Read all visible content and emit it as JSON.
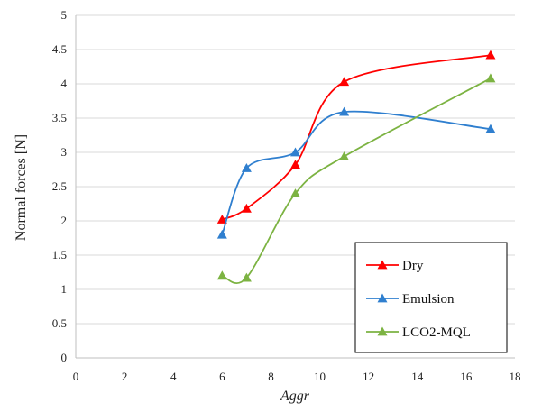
{
  "chart_data": {
    "type": "line",
    "title": "",
    "xlabel": "Aggr",
    "ylabel": "Normal forces [N]",
    "xlim": [
      0,
      18
    ],
    "ylim": [
      0,
      5
    ],
    "xticks": [
      "0",
      "2",
      "4",
      "6",
      "8",
      "10",
      "12",
      "14",
      "16",
      "18"
    ],
    "yticks": [
      "0",
      "0.5",
      "1",
      "1.5",
      "2",
      "2.5",
      "3",
      "3.5",
      "4",
      "4.5",
      "5"
    ],
    "grid": "horizontal",
    "legend_position": "bottom-right",
    "smooth_lines": true,
    "marker": "triangle",
    "series": [
      {
        "name": "Dry",
        "color": "#ff0000",
        "x": [
          6,
          7,
          9,
          11,
          17
        ],
        "y": [
          2.02,
          2.18,
          2.82,
          4.03,
          4.42
        ]
      },
      {
        "name": "Emulsion",
        "color": "#2f7fcf",
        "x": [
          6,
          7,
          9,
          11,
          17
        ],
        "y": [
          1.8,
          2.77,
          3.0,
          3.59,
          3.34
        ]
      },
      {
        "name": "LCO2-MQL",
        "color": "#7cb342",
        "x": [
          6,
          7,
          9,
          11,
          17
        ],
        "y": [
          1.2,
          1.17,
          2.4,
          2.94,
          4.08
        ]
      }
    ]
  }
}
